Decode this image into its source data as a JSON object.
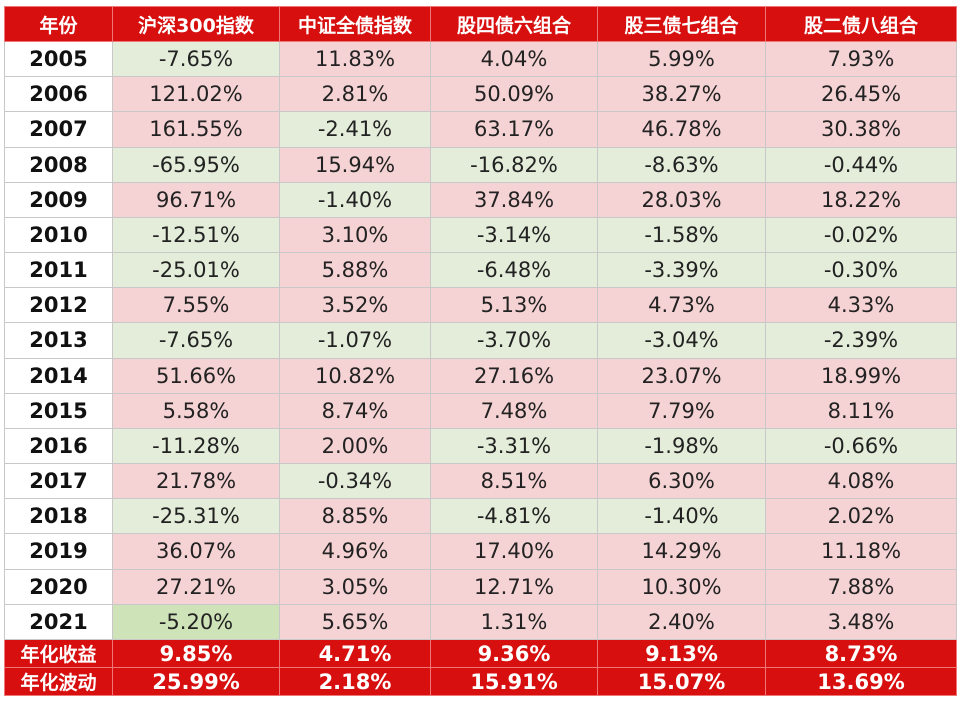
{
  "table": {
    "headers": [
      "年份",
      "沪深300指数",
      "中证全债指数",
      "股四债六组合",
      "股三债七组合",
      "股二债八组合"
    ],
    "rows": [
      {
        "year": "2005",
        "values": [
          "-7.65%",
          "11.83%",
          "4.04%",
          "5.99%",
          "7.93%"
        ]
      },
      {
        "year": "2006",
        "values": [
          "121.02%",
          "2.81%",
          "50.09%",
          "38.27%",
          "26.45%"
        ]
      },
      {
        "year": "2007",
        "values": [
          "161.55%",
          "-2.41%",
          "63.17%",
          "46.78%",
          "30.38%"
        ]
      },
      {
        "year": "2008",
        "values": [
          "-65.95%",
          "15.94%",
          "-16.82%",
          "-8.63%",
          "-0.44%"
        ]
      },
      {
        "year": "2009",
        "values": [
          "96.71%",
          "-1.40%",
          "37.84%",
          "28.03%",
          "18.22%"
        ]
      },
      {
        "year": "2010",
        "values": [
          "-12.51%",
          "3.10%",
          "-3.14%",
          "-1.58%",
          "-0.02%"
        ]
      },
      {
        "year": "2011",
        "values": [
          "-25.01%",
          "5.88%",
          "-6.48%",
          "-3.39%",
          "-0.30%"
        ]
      },
      {
        "year": "2012",
        "values": [
          "7.55%",
          "3.52%",
          "5.13%",
          "4.73%",
          "4.33%"
        ]
      },
      {
        "year": "2013",
        "values": [
          "-7.65%",
          "-1.07%",
          "-3.70%",
          "-3.04%",
          "-2.39%"
        ]
      },
      {
        "year": "2014",
        "values": [
          "51.66%",
          "10.82%",
          "27.16%",
          "23.07%",
          "18.99%"
        ]
      },
      {
        "year": "2015",
        "values": [
          "5.58%",
          "8.74%",
          "7.48%",
          "7.79%",
          "8.11%"
        ]
      },
      {
        "year": "2016",
        "values": [
          "-11.28%",
          "2.00%",
          "-3.31%",
          "-1.98%",
          "-0.66%"
        ]
      },
      {
        "year": "2017",
        "values": [
          "21.78%",
          "-0.34%",
          "8.51%",
          "6.30%",
          "4.08%"
        ]
      },
      {
        "year": "2018",
        "values": [
          "-25.31%",
          "8.85%",
          "-4.81%",
          "-1.40%",
          "2.02%"
        ]
      },
      {
        "year": "2019",
        "values": [
          "36.07%",
          "4.96%",
          "17.40%",
          "14.29%",
          "11.18%"
        ]
      },
      {
        "year": "2020",
        "values": [
          "27.21%",
          "3.05%",
          "12.71%",
          "10.30%",
          "7.88%"
        ]
      },
      {
        "year": "2021",
        "values": [
          "-5.20%",
          "5.65%",
          "1.31%",
          "2.40%",
          "3.48%"
        ]
      }
    ],
    "summary": [
      {
        "label": "年化收益",
        "values": [
          "9.85%",
          "4.71%",
          "9.36%",
          "9.13%",
          "8.73%"
        ]
      },
      {
        "label": "年化波动",
        "values": [
          "25.99%",
          "2.18%",
          "15.91%",
          "15.07%",
          "13.69%"
        ]
      }
    ],
    "colors": {
      "header_bg": "#d70f0f",
      "positive_cell": "#f5d3d4",
      "negative_cell": "#e3edda",
      "highlight_cell": "#cfe3b9"
    }
  }
}
